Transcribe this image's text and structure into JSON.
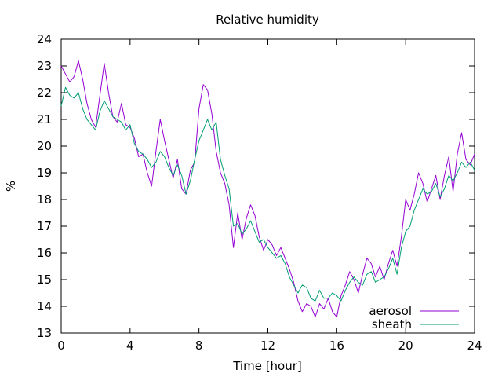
{
  "chart_data": {
    "type": "line",
    "title": "Relative humidity",
    "xlabel": "Time [hour]",
    "ylabel": "%",
    "xlim": [
      0,
      24
    ],
    "ylim": [
      13,
      24
    ],
    "xticks": [
      0,
      4,
      8,
      12,
      16,
      20,
      24
    ],
    "yticks": [
      13,
      14,
      15,
      16,
      17,
      18,
      19,
      20,
      21,
      22,
      23,
      24
    ],
    "grid": false,
    "legend_position": "bottom-right",
    "series": [
      {
        "name": "aerosol",
        "color": "#9400d3",
        "x": [
          0,
          0.25,
          0.5,
          0.75,
          1,
          1.25,
          1.5,
          1.75,
          2,
          2.25,
          2.5,
          2.75,
          3,
          3.25,
          3.5,
          3.75,
          4,
          4.25,
          4.5,
          4.75,
          5,
          5.25,
          5.5,
          5.75,
          6,
          6.25,
          6.5,
          6.75,
          7,
          7.25,
          7.5,
          7.75,
          8,
          8.25,
          8.5,
          8.75,
          9,
          9.25,
          9.5,
          9.75,
          10,
          10.25,
          10.5,
          10.75,
          11,
          11.25,
          11.5,
          11.75,
          12,
          12.25,
          12.5,
          12.75,
          13,
          13.25,
          13.5,
          13.75,
          14,
          14.25,
          14.5,
          14.75,
          15,
          15.25,
          15.5,
          15.75,
          16,
          16.25,
          16.5,
          16.75,
          17,
          17.25,
          17.5,
          17.75,
          18,
          18.25,
          18.5,
          18.75,
          19,
          19.25,
          19.5,
          19.75,
          20,
          20.25,
          20.5,
          20.75,
          21,
          21.25,
          21.5,
          21.75,
          22,
          22.25,
          22.5,
          22.75,
          23,
          23.25,
          23.5,
          23.75,
          24
        ],
        "values": [
          23.0,
          22.7,
          22.4,
          22.6,
          23.2,
          22.5,
          21.6,
          21.0,
          20.7,
          21.9,
          23.1,
          22.0,
          21.1,
          20.9,
          21.6,
          20.8,
          20.7,
          20.3,
          19.6,
          19.7,
          19.0,
          18.5,
          19.8,
          21.0,
          20.2,
          19.5,
          18.8,
          19.5,
          18.4,
          18.2,
          19.1,
          19.4,
          21.4,
          22.3,
          22.1,
          21.2,
          19.8,
          19.0,
          18.6,
          17.8,
          16.2,
          17.5,
          16.5,
          17.3,
          17.8,
          17.4,
          16.6,
          16.1,
          16.5,
          16.3,
          15.9,
          16.2,
          15.8,
          15.4,
          14.9,
          14.2,
          13.8,
          14.1,
          14.0,
          13.6,
          14.1,
          13.9,
          14.3,
          13.8,
          13.6,
          14.4,
          14.8,
          15.3,
          15.0,
          14.5,
          15.2,
          15.8,
          15.6,
          15.1,
          15.5,
          15.0,
          15.6,
          16.1,
          15.5,
          16.6,
          18.0,
          17.6,
          18.2,
          19.0,
          18.6,
          17.9,
          18.4,
          18.9,
          18.0,
          18.9,
          19.6,
          18.3,
          19.7,
          20.5,
          19.5,
          19.3,
          19.7
        ]
      },
      {
        "name": "sheath",
        "color": "#009e73",
        "x": [
          0,
          0.25,
          0.5,
          0.75,
          1,
          1.25,
          1.5,
          1.75,
          2,
          2.25,
          2.5,
          2.75,
          3,
          3.25,
          3.5,
          3.75,
          4,
          4.25,
          4.5,
          4.75,
          5,
          5.25,
          5.5,
          5.75,
          6,
          6.25,
          6.5,
          6.75,
          7,
          7.25,
          7.5,
          7.75,
          8,
          8.25,
          8.5,
          8.75,
          9,
          9.25,
          9.5,
          9.75,
          10,
          10.25,
          10.5,
          10.75,
          11,
          11.25,
          11.5,
          11.75,
          12,
          12.25,
          12.5,
          12.75,
          13,
          13.25,
          13.5,
          13.75,
          14,
          14.25,
          14.5,
          14.75,
          15,
          15.25,
          15.5,
          15.75,
          16,
          16.25,
          16.5,
          16.75,
          17,
          17.25,
          17.5,
          17.75,
          18,
          18.25,
          18.5,
          18.75,
          19,
          19.25,
          19.5,
          19.75,
          20,
          20.25,
          20.5,
          20.75,
          21,
          21.25,
          21.5,
          21.75,
          22,
          22.25,
          22.5,
          22.75,
          23,
          23.25,
          23.5,
          23.75,
          24
        ],
        "values": [
          21.5,
          22.2,
          21.9,
          21.8,
          22.0,
          21.4,
          21.0,
          20.8,
          20.6,
          21.3,
          21.7,
          21.4,
          21.1,
          21.0,
          20.9,
          20.6,
          20.8,
          20.1,
          19.8,
          19.7,
          19.5,
          19.2,
          19.4,
          19.8,
          19.6,
          19.2,
          18.9,
          19.3,
          18.9,
          18.2,
          18.7,
          19.5,
          20.2,
          20.6,
          21.0,
          20.6,
          20.9,
          19.5,
          18.9,
          18.4,
          17.0,
          17.1,
          16.7,
          16.9,
          17.2,
          16.8,
          16.4,
          16.5,
          16.2,
          16.0,
          15.8,
          15.9,
          15.6,
          15.1,
          14.8,
          14.5,
          14.8,
          14.7,
          14.3,
          14.2,
          14.6,
          14.3,
          14.3,
          14.5,
          14.4,
          14.2,
          14.6,
          14.9,
          15.1,
          14.9,
          14.8,
          15.2,
          15.3,
          14.9,
          15.0,
          15.1,
          15.4,
          15.8,
          15.2,
          16.2,
          16.8,
          17.0,
          17.6,
          18.0,
          18.4,
          18.2,
          18.3,
          18.6,
          18.1,
          18.4,
          18.9,
          18.7,
          19.0,
          19.4,
          19.2,
          19.4,
          19.1
        ]
      }
    ]
  }
}
